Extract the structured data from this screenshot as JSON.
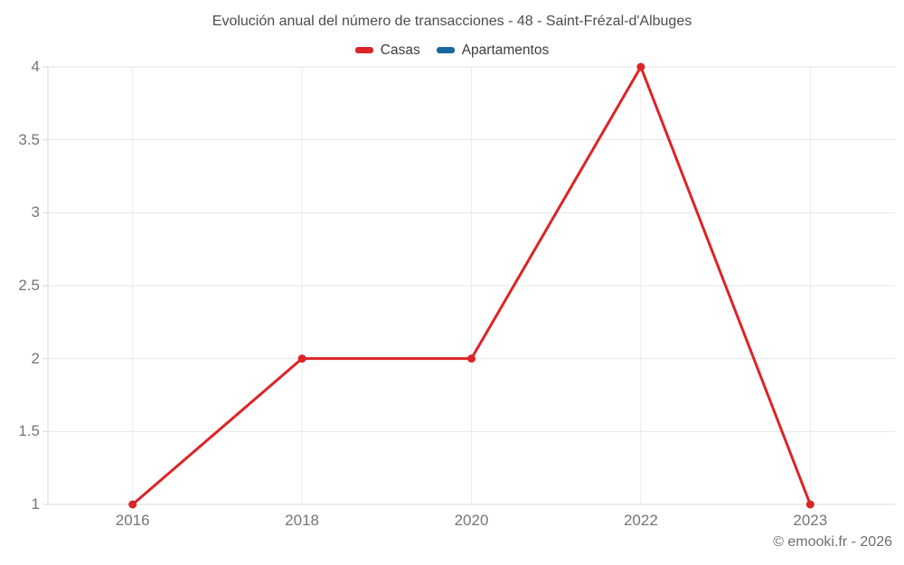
{
  "title": "Evolución anual del número de transacciones - 48 - Saint-Frézal-d'Albuges",
  "legend": {
    "items": [
      {
        "label": "Casas",
        "color": "#dc2426"
      },
      {
        "label": "Apartamentos",
        "color": "#17689f"
      }
    ]
  },
  "watermark": "© emooki.fr - 2026",
  "chart_data": {
    "type": "line",
    "title": "Evolución anual del número de transacciones - 48 - Saint-Frézal-d'Albuges",
    "categories": [
      "2016",
      "2018",
      "2020",
      "2022",
      "2023"
    ],
    "series": [
      {
        "name": "Casas",
        "color": "#dc2426",
        "marker": "circle",
        "values": [
          1,
          2,
          2,
          4,
          1
        ]
      },
      {
        "name": "Apartamentos",
        "color": "#17689f",
        "marker": "circle",
        "values": []
      }
    ],
    "xlabel": "",
    "ylabel": "",
    "yticks": [
      1,
      1.5,
      2,
      2.5,
      3,
      3.5,
      4
    ],
    "ylim": [
      1,
      4
    ],
    "grid": true,
    "legend_position": "top-center",
    "colors": {
      "horizontal_grid": "#e6e6e6",
      "vertical_grid": "#ededed",
      "axis_line": "#d9d9d9",
      "tick_label": "#757575"
    }
  }
}
